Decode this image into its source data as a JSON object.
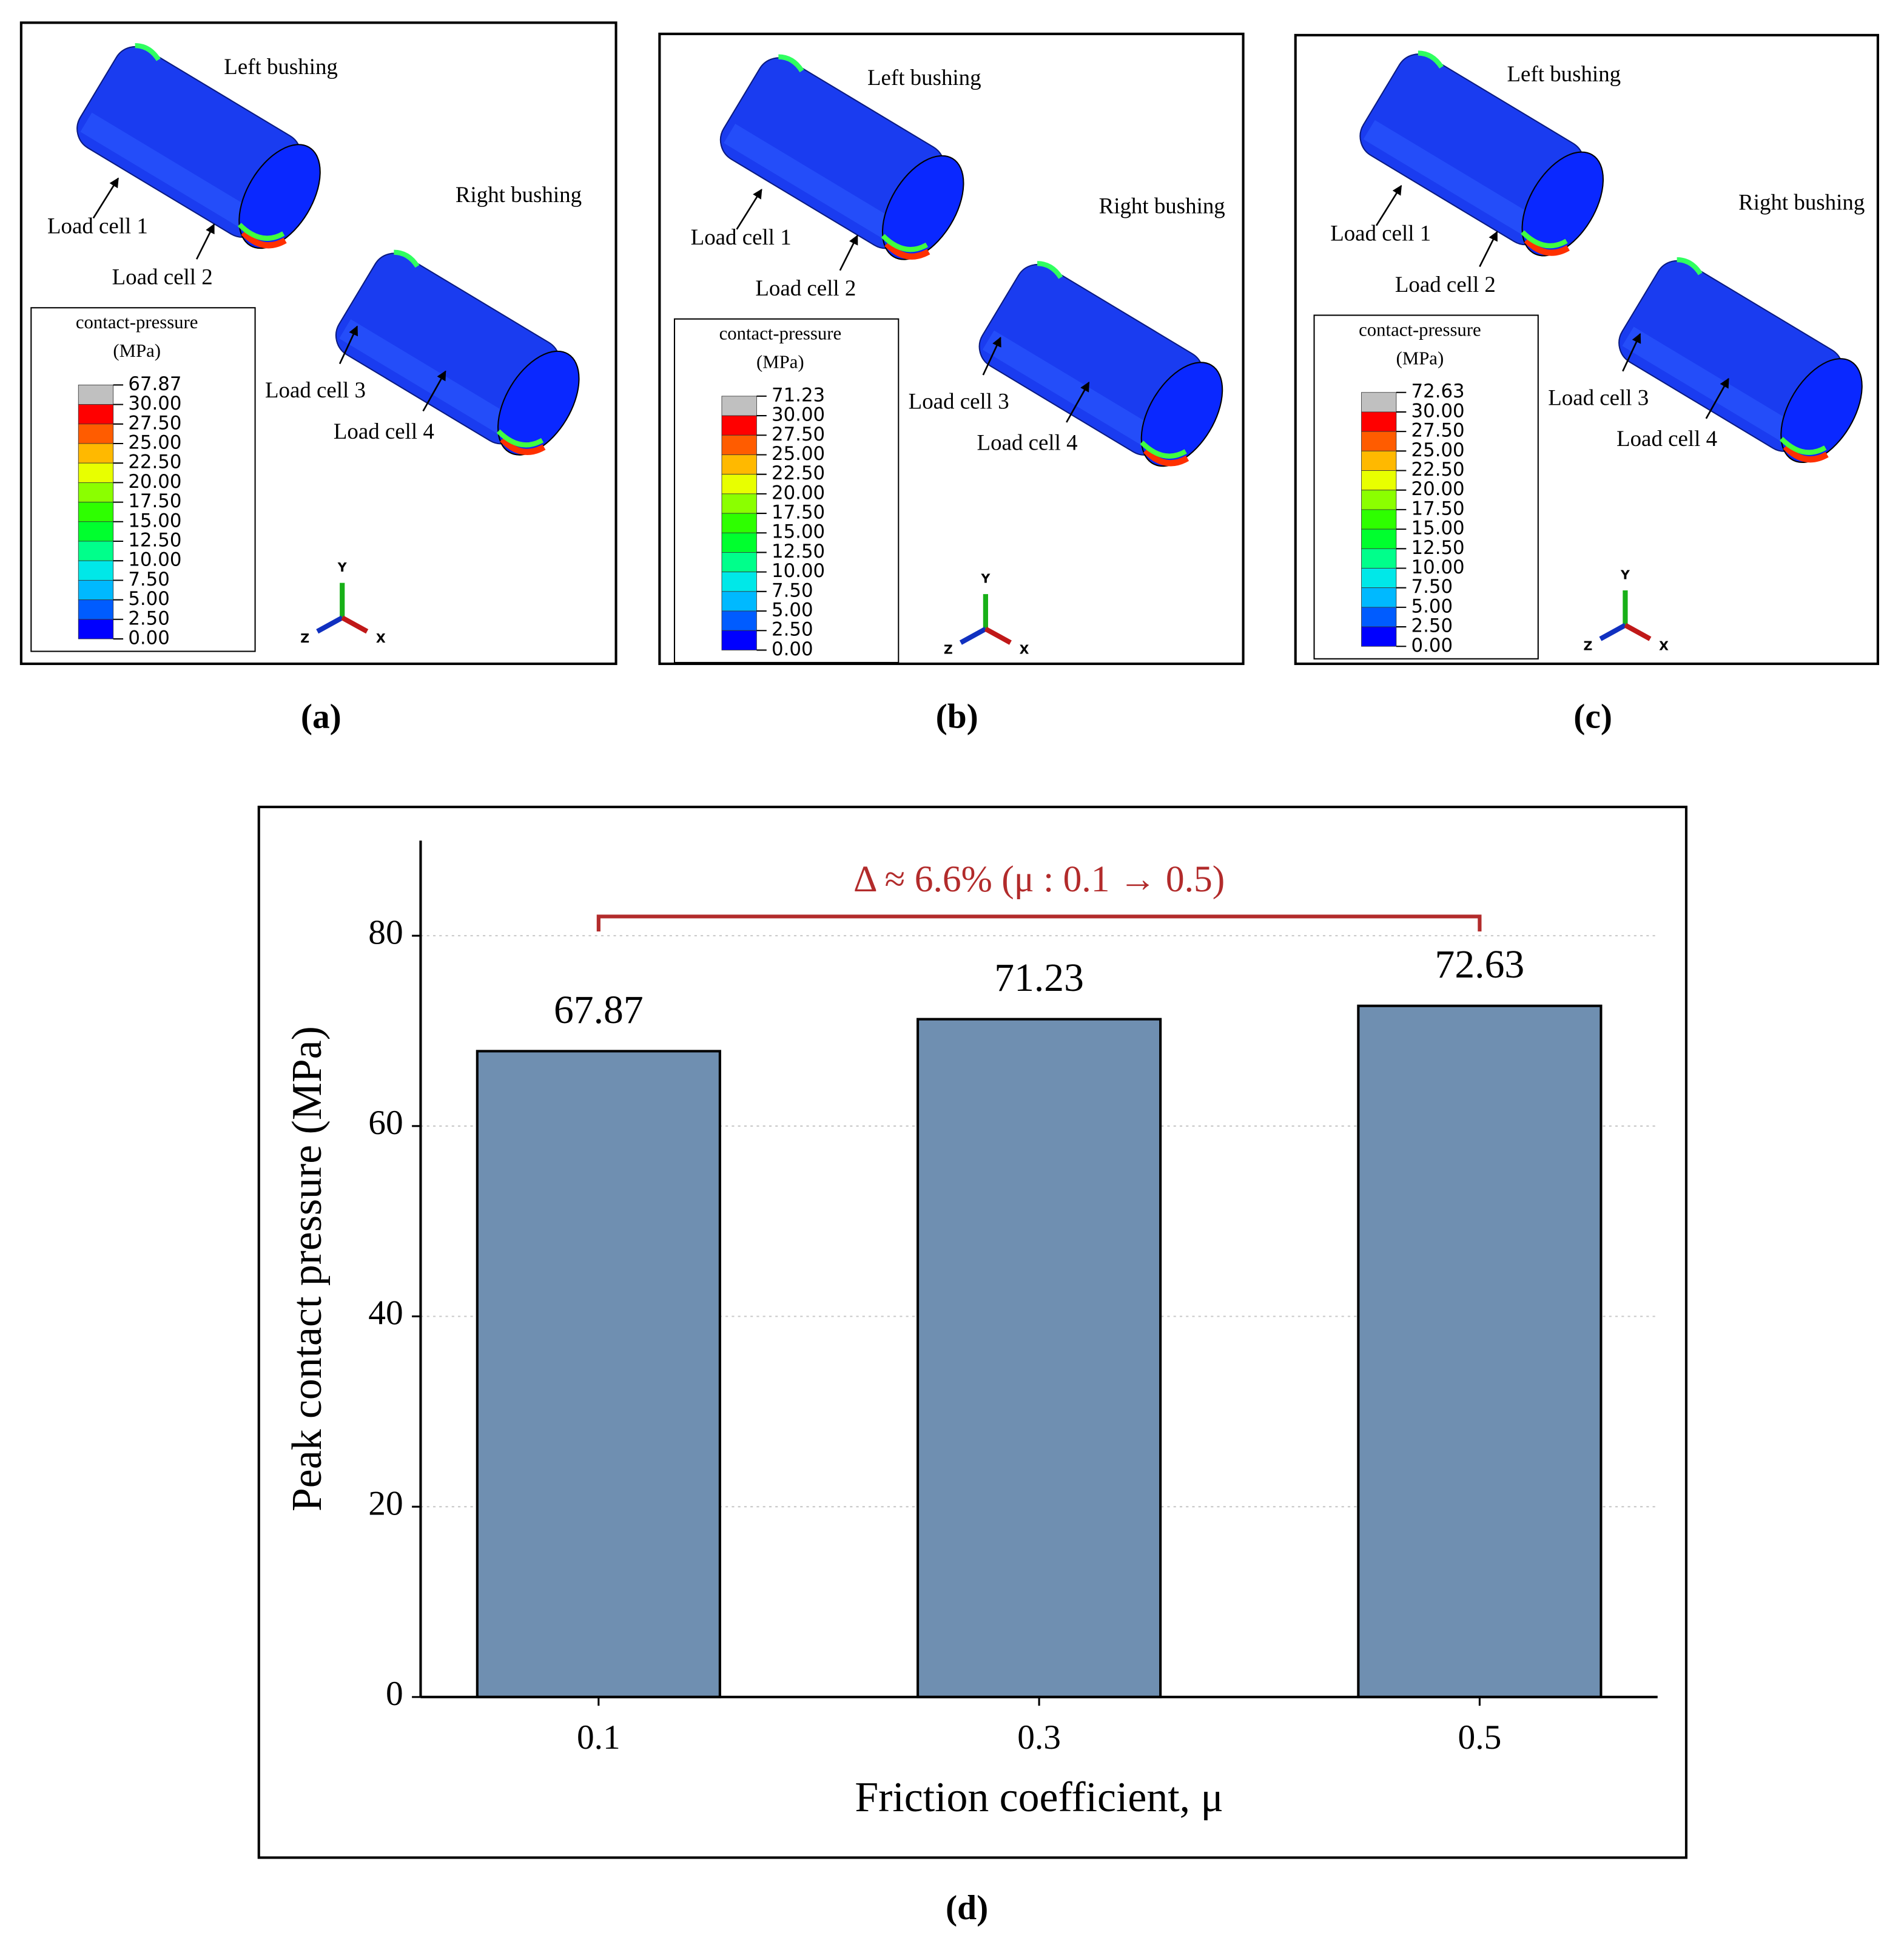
{
  "panels": [
    {
      "label": "(a)",
      "annotations": [
        "Left bushing",
        "Right bushing",
        "Load cell 1",
        "Load cell 2",
        "Load cell 3",
        "Load cell 4"
      ],
      "legend": {
        "title": "contact-pressure",
        "unit": "(MPa)",
        "labels": [
          "67.87",
          "30.00",
          "27.50",
          "25.00",
          "22.50",
          "20.00",
          "17.50",
          "15.00",
          "12.50",
          "10.00",
          "7.50",
          "5.00",
          "2.50",
          "0.00"
        ]
      },
      "axes": [
        "Y",
        "Z",
        "X"
      ]
    },
    {
      "label": "(b)",
      "annotations": [
        "Left bushing",
        "Right bushing",
        "Load cell 1",
        "Load cell 2",
        "Load cell 3",
        "Load cell 4"
      ],
      "legend": {
        "title": "contact-pressure",
        "unit": "(MPa)",
        "labels": [
          "71.23",
          "30.00",
          "27.50",
          "25.00",
          "22.50",
          "20.00",
          "17.50",
          "15.00",
          "12.50",
          "10.00",
          "7.50",
          "5.00",
          "2.50",
          "0.00"
        ]
      },
      "axes": [
        "Y",
        "Z",
        "X"
      ]
    },
    {
      "label": "(c)",
      "annotations": [
        "Left bushing",
        "Right bushing",
        "Load cell 1",
        "Load cell 2",
        "Load cell 3",
        "Load cell 4"
      ],
      "legend": {
        "title": "contact-pressure",
        "unit": "(MPa)",
        "labels": [
          "72.63",
          "30.00",
          "27.50",
          "25.00",
          "22.50",
          "20.00",
          "17.50",
          "15.00",
          "12.50",
          "10.00",
          "7.50",
          "5.00",
          "2.50",
          "0.00"
        ]
      },
      "axes": [
        "Y",
        "Z",
        "X"
      ]
    }
  ],
  "chart_data": {
    "type": "bar",
    "panel_label": "(d)",
    "x_label": "Friction coefficient, μ",
    "y_label": "Peak contact pressure (MPa)",
    "annotation": "Δ ≈ 6.6%  (μ : 0.1 → 0.5)",
    "categories": [
      "0.1",
      "0.3",
      "0.5"
    ],
    "values": [
      67.87,
      71.23,
      72.63
    ],
    "color": "#6f8fb1",
    "ylim": [
      0,
      90
    ],
    "yticks": [
      0,
      20,
      40,
      60,
      80
    ],
    "grid": true
  }
}
